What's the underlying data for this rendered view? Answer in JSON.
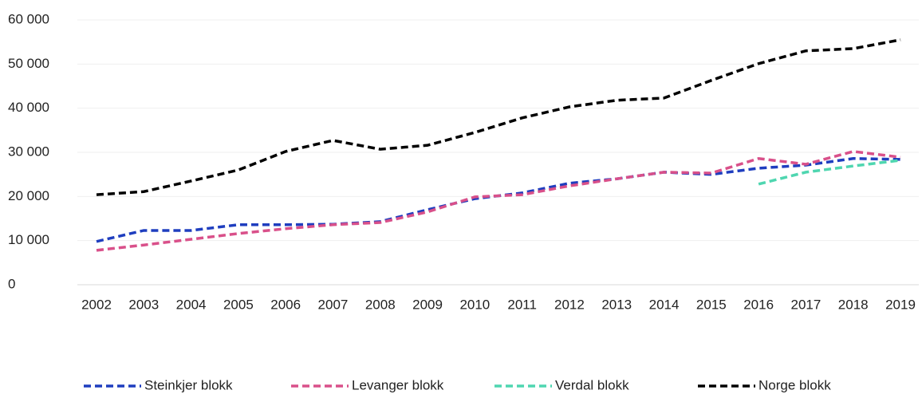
{
  "chart_data": {
    "type": "line",
    "categories": [
      "2002",
      "2003",
      "2004",
      "2005",
      "2006",
      "2007",
      "2008",
      "2009",
      "2010",
      "2011",
      "2012",
      "2013",
      "2014",
      "2015",
      "2016",
      "2017",
      "2018",
      "2019"
    ],
    "series": [
      {
        "name": "Steinkjer blokk",
        "color": "#1f3ebf",
        "values": [
          9800,
          12300,
          12300,
          13600,
          13600,
          13700,
          14300,
          17000,
          19500,
          20800,
          23000,
          24000,
          25500,
          25000,
          26400,
          27100,
          28600,
          28400
        ]
      },
      {
        "name": "Levanger blokk",
        "color": "#d9508a",
        "values": [
          7800,
          9000,
          10300,
          11600,
          12700,
          13600,
          14100,
          16500,
          19900,
          20400,
          22400,
          24000,
          25500,
          25300,
          28600,
          27300,
          30200,
          28900
        ]
      },
      {
        "name": "Verdal blokk",
        "color": "#4fd6b0",
        "values": [
          null,
          null,
          null,
          null,
          null,
          null,
          null,
          null,
          null,
          null,
          null,
          null,
          null,
          null,
          22800,
          25500,
          26900,
          28200
        ]
      },
      {
        "name": "Norge blokk",
        "color": "#000000",
        "values": [
          20400,
          21100,
          23500,
          26000,
          30200,
          32700,
          30700,
          31600,
          34500,
          37800,
          40300,
          41800,
          42300,
          46300,
          50100,
          53000,
          53500,
          55500
        ]
      }
    ],
    "ylim": [
      0,
      60000
    ],
    "yticks": [
      0,
      {
        "value": 10000,
        "label": "10 000"
      },
      {
        "value": 20000,
        "label": "20 000"
      },
      {
        "value": 30000,
        "label": "30 000"
      },
      {
        "value": 40000,
        "label": "40 000"
      },
      {
        "value": 50000,
        "label": "50 000"
      },
      {
        "value": 60000,
        "label": "60 000"
      }
    ],
    "grid": true,
    "legend": "bottom"
  }
}
